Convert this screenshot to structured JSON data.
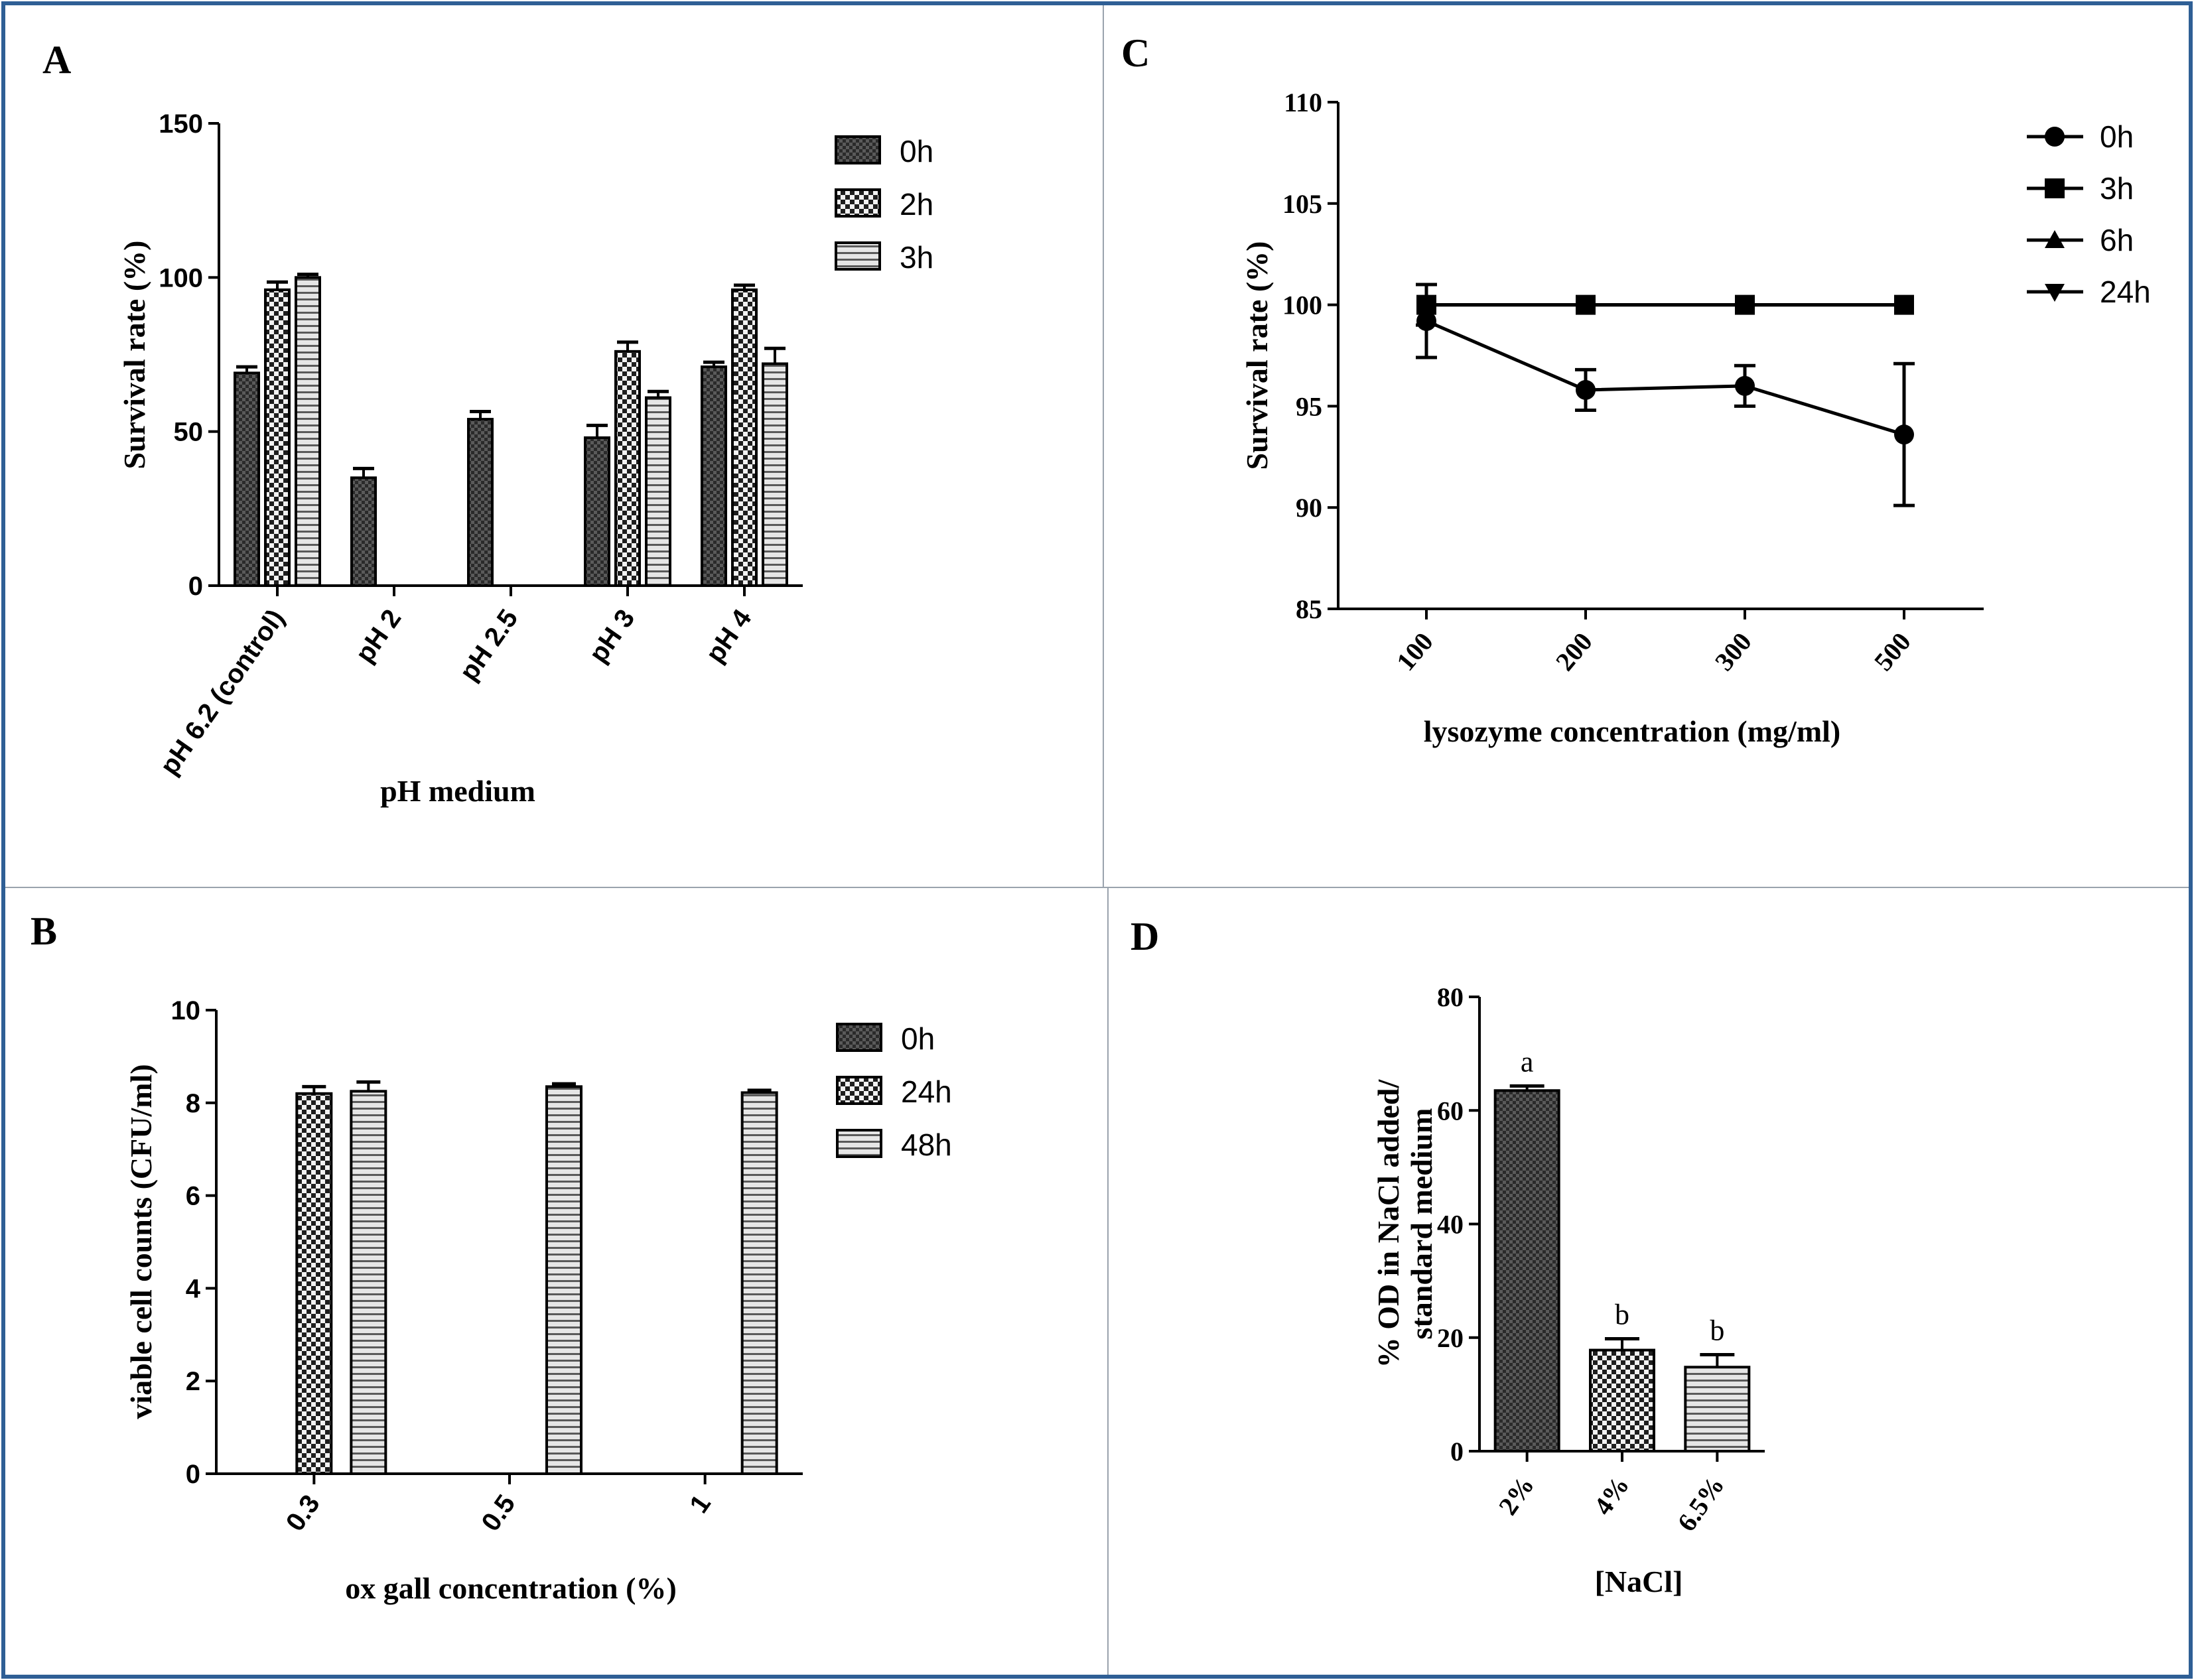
{
  "colors": {
    "frame": "#2f5f95",
    "divider": "#9aa3ad",
    "ink": "#000000",
    "bar_0": "#3a3a3a",
    "bar_light": "#d8d8d8"
  },
  "chart_data": [
    {
      "panel": "A",
      "type": "bar",
      "categories": [
        "pH 6.2 (control)",
        "pH 2",
        "pH 2.5",
        "pH 3",
        "pH 4"
      ],
      "series": [
        {
          "name": "0h",
          "pattern": "dark-dots",
          "values": [
            69,
            35,
            54,
            48,
            71
          ],
          "errors": [
            2,
            3,
            2.5,
            4,
            1.5
          ]
        },
        {
          "name": "2h",
          "pattern": "checker",
          "values": [
            96,
            0,
            0,
            76,
            96
          ],
          "errors": [
            2.5,
            0,
            0,
            3,
            1.5
          ]
        },
        {
          "name": "3h",
          "pattern": "hstripes",
          "values": [
            100,
            0,
            0,
            61,
            72
          ],
          "errors": [
            1,
            0,
            0,
            2,
            5
          ]
        }
      ],
      "xlabel": "pH medium",
      "ylabel": "Survival rate (%)",
      "ylim": [
        0,
        150
      ],
      "yticks": [
        "0",
        "50",
        "100",
        "150"
      ],
      "legend": "top-right"
    },
    {
      "panel": "B",
      "type": "bar",
      "categories": [
        "0.3",
        "0.5",
        "1"
      ],
      "series": [
        {
          "name": "0h",
          "pattern": "dark-dots",
          "values": [
            0,
            0,
            0
          ],
          "errors": [
            0,
            0,
            0
          ]
        },
        {
          "name": "24h",
          "pattern": "checker",
          "values": [
            8.2,
            0,
            0
          ],
          "errors": [
            0.15,
            0,
            0
          ]
        },
        {
          "name": "48h",
          "pattern": "hstripes",
          "values": [
            8.25,
            8.35,
            8.22
          ],
          "errors": [
            0.2,
            0.06,
            0.05
          ]
        }
      ],
      "xlabel": "ox gall concentration (%)",
      "ylabel": "viable cell counts (CFU/ml)",
      "ylim": [
        0,
        10
      ],
      "yticks": [
        "0",
        "2",
        "4",
        "6",
        "8",
        "10"
      ],
      "legend": "top-right"
    },
    {
      "panel": "C",
      "type": "line",
      "x": [
        "100",
        "200",
        "300",
        "500"
      ],
      "series": [
        {
          "name": "0h",
          "marker": "circle",
          "values": [
            99.2,
            95.8,
            96.0,
            93.6
          ],
          "errors": [
            1.8,
            1.0,
            1.0,
            3.5
          ]
        },
        {
          "name": "3h",
          "marker": "square",
          "values": [
            100,
            100,
            100,
            100
          ],
          "errors": [
            1.0,
            0,
            0,
            0
          ]
        },
        {
          "name": "6h",
          "marker": "triangle-up",
          "values": [
            100,
            100,
            100,
            100
          ],
          "errors": [
            0,
            0,
            0,
            0
          ]
        },
        {
          "name": "24h",
          "marker": "triangle-down",
          "values": [
            100,
            100,
            100,
            100
          ],
          "errors": [
            0,
            0,
            0,
            0
          ]
        }
      ],
      "xlabel": "lysozyme concentration (mg/ml)",
      "ylabel": "Survival rate (%)",
      "ylim": [
        85,
        110
      ],
      "yticks": [
        "85",
        "90",
        "95",
        "100",
        "105",
        "110"
      ],
      "legend": "top-right"
    },
    {
      "panel": "D",
      "type": "bar",
      "categories": [
        "2%",
        "4%",
        "6.5%"
      ],
      "series": [
        {
          "name": "",
          "patterns": [
            "dark-dots",
            "checker",
            "hstripes"
          ],
          "values": [
            63.5,
            17.8,
            14.8
          ],
          "errors": [
            0.8,
            2.0,
            2.2
          ]
        }
      ],
      "annotations": [
        "a",
        "b",
        "b"
      ],
      "xlabel": "[NaCl]",
      "ylabel_lines": [
        "% OD in NaCl added/",
        "standard medium"
      ],
      "ylim": [
        0,
        80
      ],
      "yticks": [
        "0",
        "20",
        "40",
        "60",
        "80"
      ]
    }
  ]
}
